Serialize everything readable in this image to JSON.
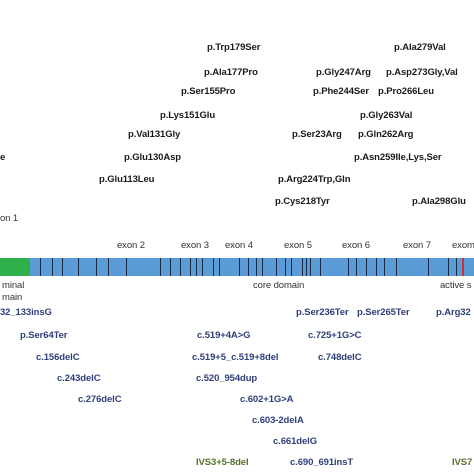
{
  "exons": [
    "on 1",
    "exon 2",
    "exon 3",
    "exon 4",
    "exon 5",
    "exon 6",
    "exon 7",
    "exom"
  ],
  "domains": {
    "nterm_1": "minal",
    "nterm_2": "main",
    "core": "core domain",
    "active": "active s"
  },
  "missense_above": [
    "p.Trp179Ser",
    "p.Ala177Pro",
    "p.Ser155Pro",
    "p.Lys151Glu",
    "p.Val131Gly",
    "p.Glu130Asp",
    "p.Glu113Leu",
    "p.Gly247Arg",
    "p.Phe244Ser",
    "p.Ser23Arg",
    "p.Arg224Trp,Gln",
    "p.Cys218Tyr",
    "p.Ala279Val",
    "p.Asp273Gly,Val",
    "p.Pro266Leu",
    "p.Gly263Val",
    "p.Gln262Arg",
    "p.Asn259Ile,Lys,Ser",
    "p.Ala298Glu",
    "e"
  ],
  "variants_below": [
    "32_133insG",
    "p.Ser64Ter",
    "c.156delC",
    "c.243delC",
    "c.276delC",
    "p.Ser236Ter",
    "p.Ser265Ter",
    "p.Arg32",
    "c.519+4A>G",
    "c.725+1G>C",
    "c.519+5_c.519+8del",
    "c.748delC",
    "c.520_954dup",
    "c.602+1G>A",
    "c.603-2delA",
    "c.661delG",
    "c.690_691insT",
    "IVS3+5-8del",
    "IVS7"
  ],
  "colors": {
    "bar": "#5b9bd5",
    "nterminal": "#2eb04a",
    "tick": "#1b2a44",
    "deletion_text": "#2f3f7a",
    "splice_text": "#55702a"
  }
}
